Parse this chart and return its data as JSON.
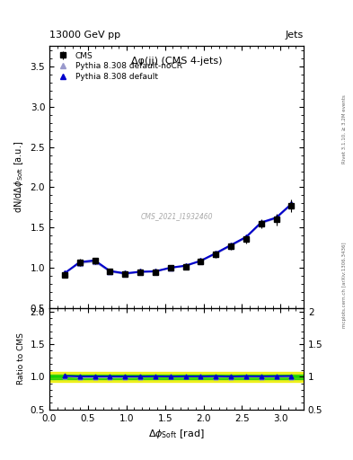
{
  "title_left": "13000 GeV pp",
  "title_right": "Jets",
  "plot_title": "Δφ(jj) (CMS 4-jets)",
  "ylabel_main": "dN/dΔφ$_{\\rm Soft}$ [a.u.]",
  "ylabel_ratio": "Ratio to CMS",
  "xlabel": "Δφ$_{\\rm Soft}$ [rad]",
  "right_label_top": "Rivet 3.1.10, ≥ 3.2M events",
  "right_label_bottom": "mcplots.cern.ch [arXiv:1306.3436]",
  "watermark": "CMS_2021_I1932460",
  "cms_x": [
    0.196,
    0.393,
    0.589,
    0.785,
    0.982,
    1.178,
    1.374,
    1.571,
    1.767,
    1.963,
    2.16,
    2.356,
    2.553,
    2.749,
    2.945,
    3.142
  ],
  "cms_y": [
    0.92,
    1.07,
    1.09,
    0.96,
    0.93,
    0.95,
    0.95,
    1.0,
    1.02,
    1.08,
    1.17,
    1.27,
    1.36,
    1.55,
    1.6,
    1.77
  ],
  "cms_yerr": [
    0.04,
    0.04,
    0.04,
    0.03,
    0.03,
    0.03,
    0.03,
    0.03,
    0.03,
    0.03,
    0.04,
    0.04,
    0.05,
    0.06,
    0.07,
    0.08
  ],
  "pythia_default_x": [
    0.196,
    0.393,
    0.589,
    0.785,
    0.982,
    1.178,
    1.374,
    1.571,
    1.767,
    1.963,
    2.16,
    2.356,
    2.553,
    2.749,
    2.945,
    3.142
  ],
  "pythia_default_y": [
    0.935,
    1.075,
    1.095,
    0.965,
    0.935,
    0.955,
    0.96,
    1.005,
    1.03,
    1.09,
    1.185,
    1.285,
    1.385,
    1.565,
    1.625,
    1.795
  ],
  "pythia_nocr_x": [
    0.196,
    0.393,
    0.589,
    0.785,
    0.982,
    1.178,
    1.374,
    1.571,
    1.767,
    1.963,
    2.16,
    2.356,
    2.553,
    2.749,
    2.945,
    3.142
  ],
  "pythia_nocr_y": [
    0.935,
    1.06,
    1.08,
    0.955,
    0.925,
    0.95,
    0.955,
    1.0,
    1.025,
    1.085,
    1.175,
    1.275,
    1.375,
    1.555,
    1.615,
    1.785
  ],
  "ratio_default_y": [
    1.015,
    1.007,
    1.007,
    1.007,
    1.005,
    1.005,
    1.008,
    1.005,
    1.008,
    1.007,
    1.01,
    1.005,
    1.01,
    1.008,
    1.01,
    1.012
  ],
  "ratio_nocr_y": [
    1.01,
    0.989,
    0.99,
    0.99,
    0.992,
    0.997,
    1.002,
    1.0,
    1.0,
    1.002,
    0.998,
    0.998,
    1.0,
    0.998,
    1.0,
    0.998
  ],
  "green_band_y1": 0.97,
  "green_band_y2": 1.03,
  "yellow_band_y1": 0.92,
  "yellow_band_y2": 1.08,
  "ylim_main": [
    0.5,
    3.75
  ],
  "ylim_ratio": [
    0.5,
    2.05
  ],
  "xlim": [
    0.0,
    3.3
  ],
  "yticks_main": [
    0.5,
    1.0,
    1.5,
    2.0,
    2.5,
    3.0,
    3.5
  ],
  "yticks_ratio": [
    0.5,
    1.0,
    1.5,
    2.0
  ],
  "color_cms": "#000000",
  "color_pythia_default": "#0000cc",
  "color_pythia_nocr": "#9999cc",
  "color_green_band": "#00cc00",
  "color_yellow_band": "#eeee00",
  "bg_color": "#ffffff"
}
